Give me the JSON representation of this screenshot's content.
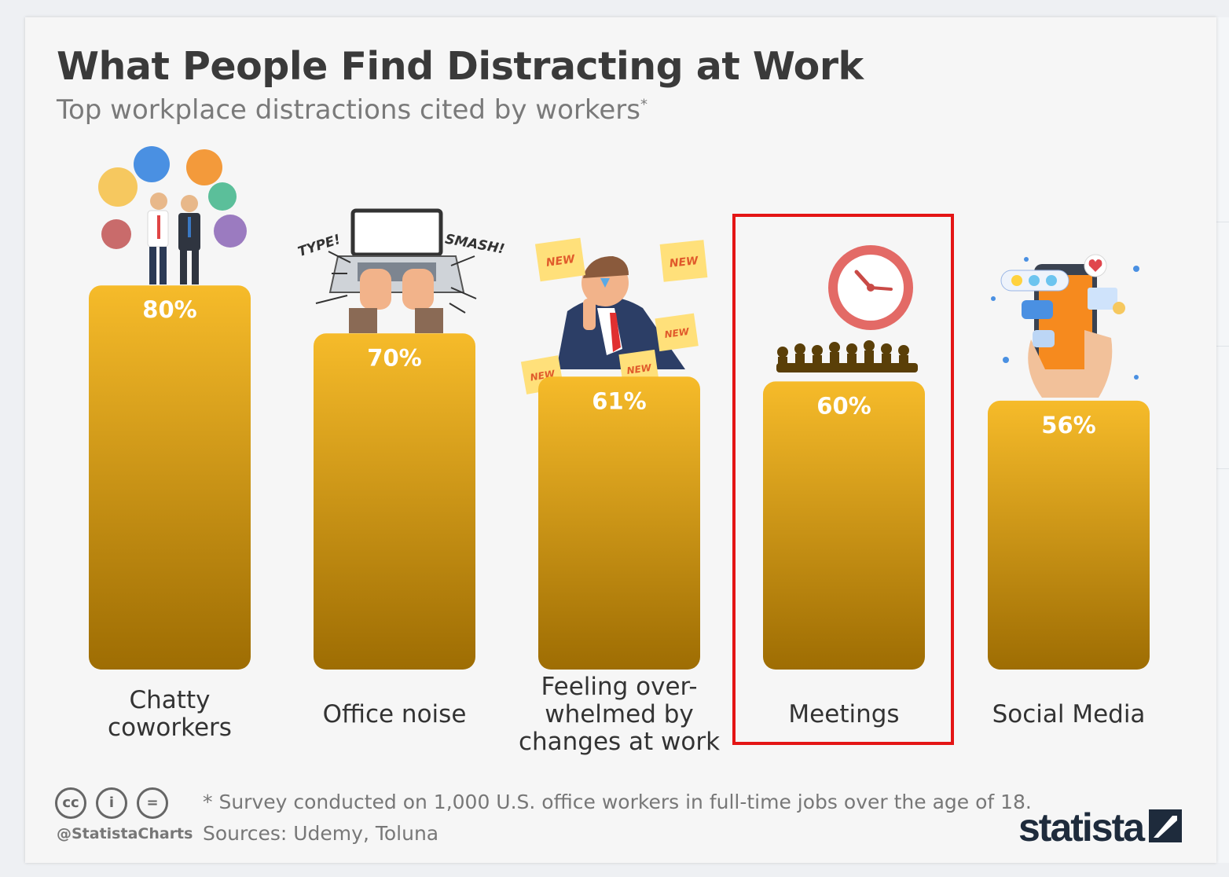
{
  "header": {
    "title": "What People Find Distracting at Work",
    "subtitle": "Top workplace distractions cited by workers",
    "subtitle_marker": "*"
  },
  "chart_data": {
    "type": "bar",
    "title": "What People Find Distracting at Work",
    "subtitle": "Top workplace distractions cited by workers*",
    "categories": [
      "Chatty\ncoworkers",
      "Office noise",
      "Feeling over-\nwhelmed by\nchanges at work",
      "Meetings",
      "Social Media"
    ],
    "values": [
      80,
      70,
      61,
      60,
      56
    ],
    "value_labels": [
      "80%",
      "70%",
      "61%",
      "60%",
      "56%"
    ],
    "unit": "%",
    "ylim": [
      0,
      100
    ],
    "highlighted_category": "Meetings",
    "grid": false,
    "legend": "none"
  },
  "illustrations": {
    "chatty": "speech-bubbles-coworkers",
    "noise": {
      "icon": "laptop-typing",
      "words": [
        "TYPE!",
        "SMASH!"
      ]
    },
    "overwhelmed": {
      "icon": "stressed-man-sticky-notes",
      "note_text": "NEW"
    },
    "meetings": "clock-meeting-table",
    "social": "smartphone-emoji"
  },
  "footer": {
    "note": "* Survey conducted on 1,000 U.S. office workers in full-time jobs over the age of 18.",
    "sources": "Sources: Udemy, Toluna",
    "handle": "@StatistaCharts",
    "license_icons": [
      "cc-icon",
      "attribution-icon",
      "no-derivatives-icon"
    ],
    "brand": "statista"
  },
  "colors": {
    "bar_top": "#f6bb2a",
    "bar_bottom": "#9e6d03",
    "bar_label": "#ffffff",
    "highlight": "#e41515",
    "title": "#3a3a3a",
    "subtitle": "#7a7a7a"
  }
}
